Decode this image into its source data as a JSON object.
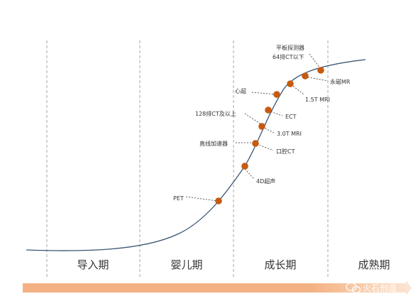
{
  "stages": [
    {
      "label": "导入期"
    },
    {
      "label": "婴儿期"
    },
    {
      "label": "成长期"
    },
    {
      "label": "成熟期"
    }
  ],
  "points": [
    {
      "label": "PET"
    },
    {
      "label": "4D超声"
    },
    {
      "label": "直线加速器"
    },
    {
      "label": "口腔CT"
    },
    {
      "label": "3.0T MRI"
    },
    {
      "label": "128排CT及以上"
    },
    {
      "label": "ECT"
    },
    {
      "label": "心超"
    },
    {
      "label": "1.5T MRI"
    },
    {
      "label": "永磁MR"
    },
    {
      "label": "平板探测器"
    },
    {
      "label": "64排CT以下"
    }
  ],
  "watermark": {
    "text": "火石创造",
    "icon": "wechat-icon"
  },
  "colors": {
    "curve": "#3b5573",
    "dot": "#c55a11",
    "divider": "#a6a6a6",
    "arrow_bar": "#f4b183",
    "leader": "#333333"
  }
}
